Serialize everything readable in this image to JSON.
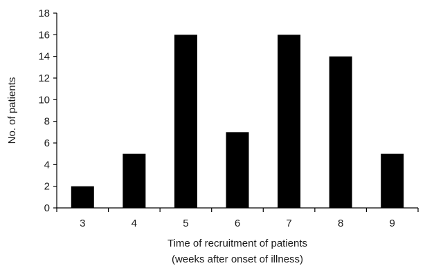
{
  "chart_data": {
    "type": "bar",
    "categories": [
      "3",
      "4",
      "5",
      "6",
      "7",
      "8",
      "9"
    ],
    "values": [
      2,
      5,
      16,
      7,
      16,
      14,
      5
    ],
    "xlabel": [
      "Time of recruitment of patients",
      "(weeks after onset of illness)"
    ],
    "ylabel": "No. of patients",
    "ylim": [
      0,
      18
    ],
    "yticks": [
      0,
      2,
      4,
      6,
      8,
      10,
      12,
      14,
      16,
      18
    ],
    "grid": false,
    "legend": "none",
    "bar_color": "#000000"
  }
}
